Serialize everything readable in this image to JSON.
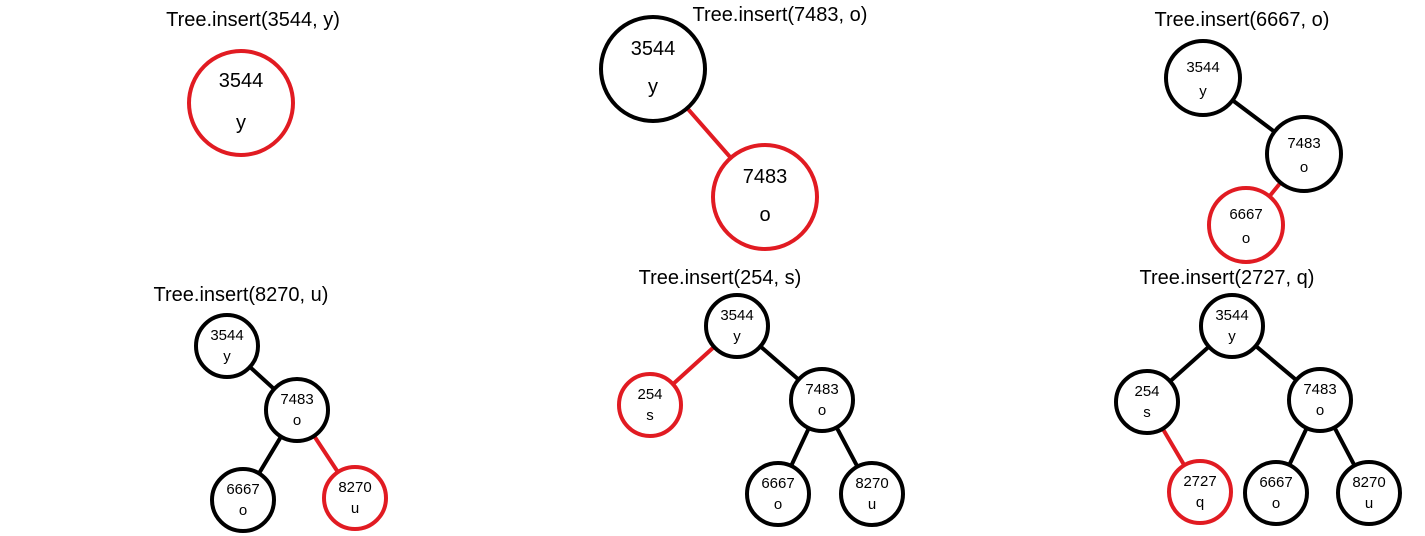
{
  "colors": {
    "red": "#e11b22",
    "black": "#000000",
    "background": "#ffffff"
  },
  "panels": [
    {
      "title": "Tree.insert(3544, y)",
      "nodes": [
        {
          "id": "n3544",
          "key": "3544",
          "value": "y",
          "color": "red"
        }
      ],
      "edges": []
    },
    {
      "title": "Tree.insert(7483, o)",
      "nodes": [
        {
          "id": "n3544",
          "key": "3544",
          "value": "y",
          "color": "black"
        },
        {
          "id": "n7483",
          "key": "7483",
          "value": "o",
          "color": "red"
        }
      ],
      "edges": [
        {
          "from": "n3544",
          "to": "n7483",
          "color": "red"
        }
      ]
    },
    {
      "title": "Tree.insert(6667, o)",
      "nodes": [
        {
          "id": "n3544",
          "key": "3544",
          "value": "y",
          "color": "black"
        },
        {
          "id": "n7483",
          "key": "7483",
          "value": "o",
          "color": "black"
        },
        {
          "id": "n6667",
          "key": "6667",
          "value": "o",
          "color": "red"
        }
      ],
      "edges": [
        {
          "from": "n3544",
          "to": "n7483",
          "color": "black"
        },
        {
          "from": "n7483",
          "to": "n6667",
          "color": "red"
        }
      ]
    },
    {
      "title": "Tree.insert(8270, u)",
      "nodes": [
        {
          "id": "n3544",
          "key": "3544",
          "value": "y",
          "color": "black"
        },
        {
          "id": "n7483",
          "key": "7483",
          "value": "o",
          "color": "black"
        },
        {
          "id": "n6667",
          "key": "6667",
          "value": "o",
          "color": "black"
        },
        {
          "id": "n8270",
          "key": "8270",
          "value": "u",
          "color": "red"
        }
      ],
      "edges": [
        {
          "from": "n3544",
          "to": "n7483",
          "color": "black"
        },
        {
          "from": "n7483",
          "to": "n6667",
          "color": "black"
        },
        {
          "from": "n7483",
          "to": "n8270",
          "color": "red"
        }
      ]
    },
    {
      "title": "Tree.insert(254, s)",
      "nodes": [
        {
          "id": "n3544",
          "key": "3544",
          "value": "y",
          "color": "black"
        },
        {
          "id": "n254",
          "key": "254",
          "value": "s",
          "color": "red"
        },
        {
          "id": "n7483",
          "key": "7483",
          "value": "o",
          "color": "black"
        },
        {
          "id": "n6667",
          "key": "6667",
          "value": "o",
          "color": "black"
        },
        {
          "id": "n8270",
          "key": "8270",
          "value": "u",
          "color": "black"
        }
      ],
      "edges": [
        {
          "from": "n3544",
          "to": "n254",
          "color": "red"
        },
        {
          "from": "n3544",
          "to": "n7483",
          "color": "black"
        },
        {
          "from": "n7483",
          "to": "n6667",
          "color": "black"
        },
        {
          "from": "n7483",
          "to": "n8270",
          "color": "black"
        }
      ]
    },
    {
      "title": "Tree.insert(2727, q)",
      "nodes": [
        {
          "id": "n3544",
          "key": "3544",
          "value": "y",
          "color": "black"
        },
        {
          "id": "n254",
          "key": "254",
          "value": "s",
          "color": "black"
        },
        {
          "id": "n2727",
          "key": "2727",
          "value": "q",
          "color": "red"
        },
        {
          "id": "n7483",
          "key": "7483",
          "value": "o",
          "color": "black"
        },
        {
          "id": "n6667",
          "key": "6667",
          "value": "o",
          "color": "black"
        },
        {
          "id": "n8270",
          "key": "8270",
          "value": "u",
          "color": "black"
        }
      ],
      "edges": [
        {
          "from": "n3544",
          "to": "n254",
          "color": "black"
        },
        {
          "from": "n254",
          "to": "n2727",
          "color": "red"
        },
        {
          "from": "n3544",
          "to": "n7483",
          "color": "black"
        },
        {
          "from": "n7483",
          "to": "n6667",
          "color": "black"
        },
        {
          "from": "n7483",
          "to": "n8270",
          "color": "black"
        }
      ]
    }
  ]
}
